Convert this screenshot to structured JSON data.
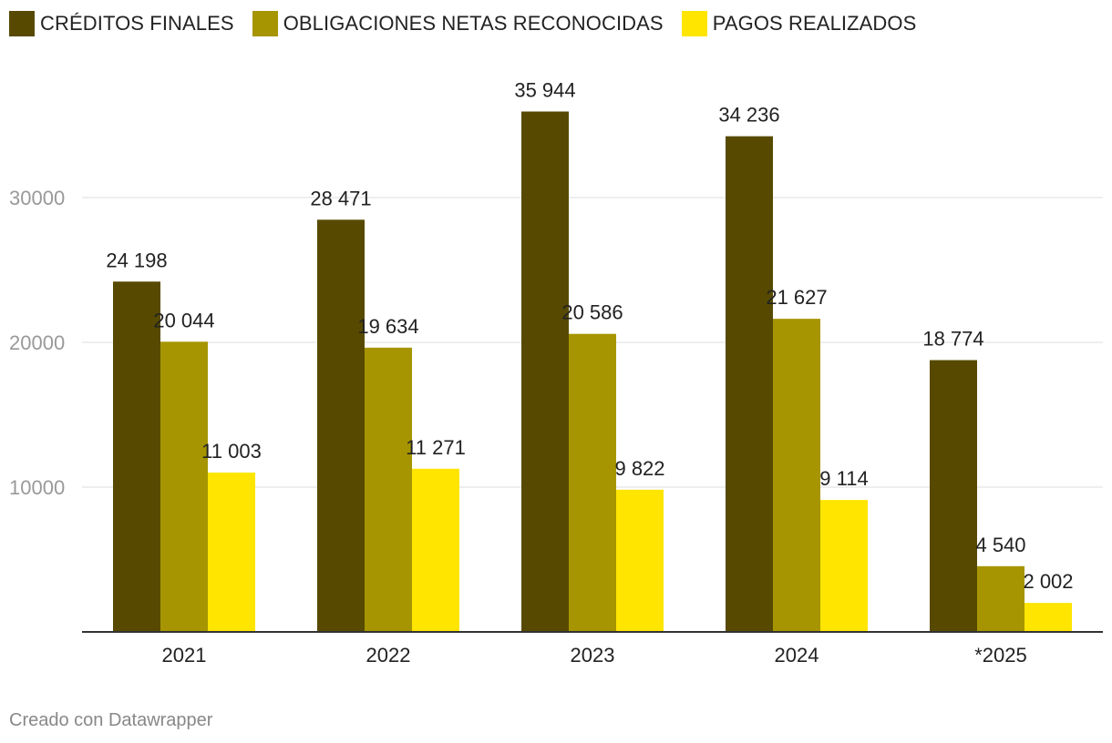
{
  "chart_data": {
    "type": "bar",
    "categories": [
      "2021",
      "2022",
      "2023",
      "2024",
      "*2025"
    ],
    "series": [
      {
        "name": "CRÉDITOS FINALES",
        "color": "#574a00",
        "values": [
          24198,
          28471,
          35944,
          34236,
          18774
        ],
        "labels": [
          "24 198",
          "28 471",
          "35 944",
          "34 236",
          "18 774"
        ]
      },
      {
        "name": "OBLIGACIONES NETAS RECONOCIDAS",
        "color": "#a69500",
        "values": [
          20044,
          19634,
          20586,
          21627,
          4540
        ],
        "labels": [
          "20 044",
          "19 634",
          "20 586",
          "21 627",
          "4 540"
        ]
      },
      {
        "name": "PAGOS REALIZADOS",
        "color": "#ffe500",
        "values": [
          11003,
          11271,
          9822,
          9114,
          2002
        ],
        "labels": [
          "11 003",
          "11 271",
          "9 822",
          "9 114",
          "2 002"
        ]
      }
    ],
    "y_ticks": [
      10000,
      20000,
      30000
    ],
    "y_tick_labels": [
      "10000",
      "20000",
      "30000"
    ],
    "ylim": [
      0,
      40000
    ],
    "grid": true,
    "legend_position": "top-left"
  },
  "footer": {
    "credit": "Creado con Datawrapper"
  }
}
